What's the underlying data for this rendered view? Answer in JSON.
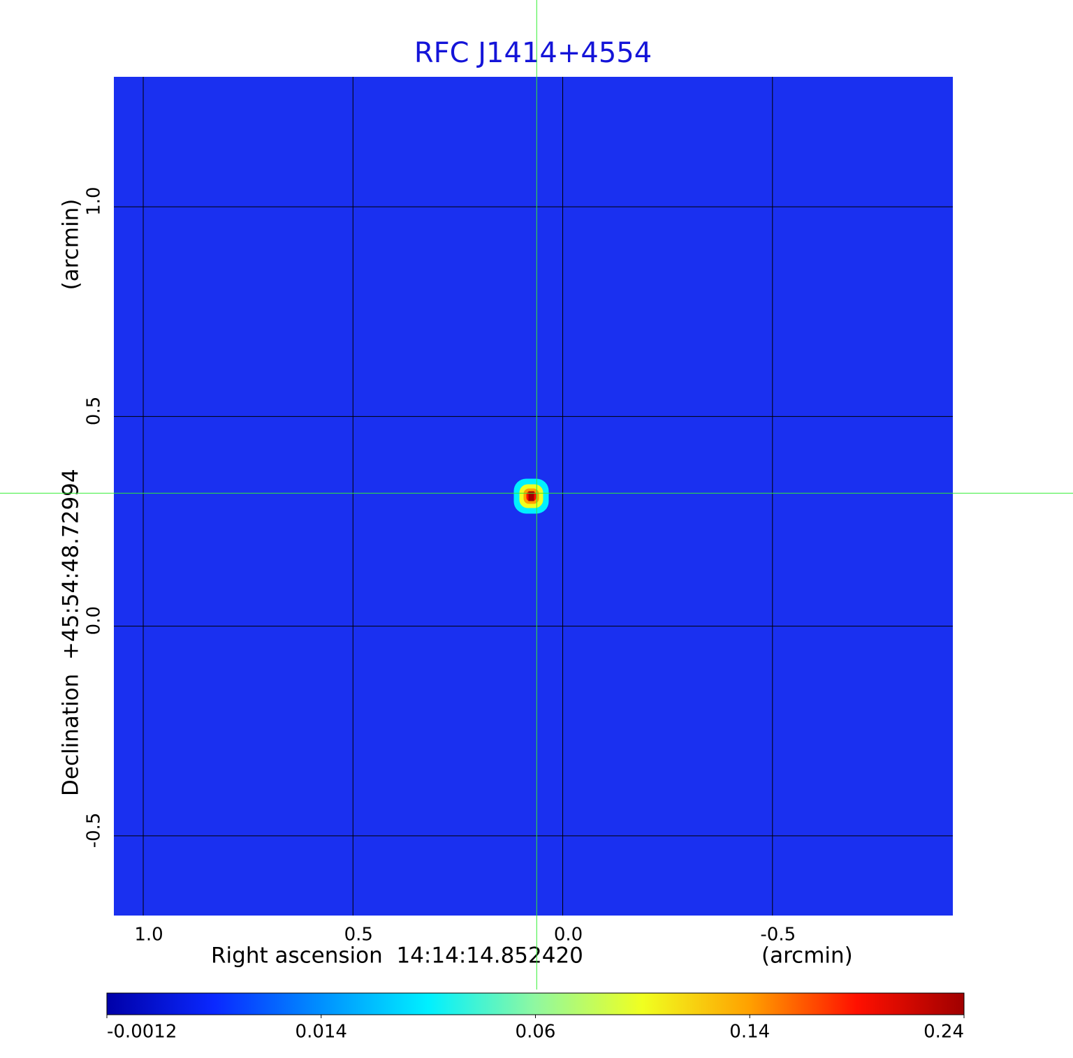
{
  "chart_data": {
    "type": "image",
    "title": "RFC J1414+4554",
    "x_label": "Right ascension  14:14:14.852420",
    "x_unit": "(arcmin)",
    "y_label": "Declination  +45:54:48.72994",
    "y_unit": "(arcmin)",
    "xlim": [
      1.07,
      -0.93
    ],
    "ylim": [
      -0.69,
      1.31
    ],
    "xticks": [
      {
        "value": 1.0,
        "label": "1.0"
      },
      {
        "value": 0.5,
        "label": "0.5"
      },
      {
        "value": 0,
        "label": "0.0"
      },
      {
        "value": -0.5,
        "label": "-0.5"
      }
    ],
    "yticks": [
      {
        "value": -0.5,
        "label": "-0.5"
      },
      {
        "value": 0,
        "label": "0.0"
      },
      {
        "value": 0.5,
        "label": "0.5"
      },
      {
        "value": 1.0,
        "label": "1.0"
      }
    ],
    "grid": true,
    "background_color": "#1a30f0",
    "source": {
      "x": 0.075,
      "y": 0.31,
      "peak": 0.24
    },
    "crosshair": {
      "x": 0.062,
      "y": 0.317,
      "color": "#33ee33"
    },
    "colorbar_ticks": [
      -0.0012,
      0.014,
      0.06,
      0.14,
      0.24
    ],
    "colormap": [
      "#0000a8",
      "#0a28ff",
      "#0090ff",
      "#00f0ff",
      "#90f8a0",
      "#f0ff20",
      "#ffa000",
      "#ff1000",
      "#a00000"
    ]
  }
}
